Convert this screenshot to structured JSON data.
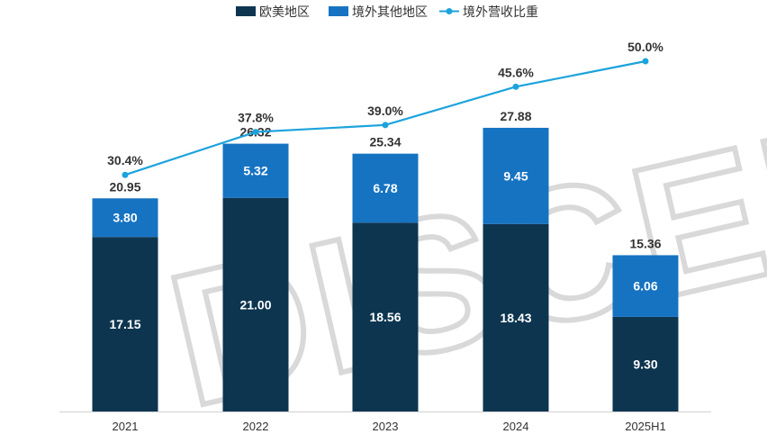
{
  "chart_data": {
    "type": "bar",
    "stacked": true,
    "categories": [
      "2021",
      "2022",
      "2023",
      "2024",
      "2025H1"
    ],
    "series": [
      {
        "name": "欧美地区",
        "color": "#0d3550",
        "values": [
          17.15,
          21.0,
          18.56,
          18.43,
          9.3
        ]
      },
      {
        "name": "境外其他地区",
        "color": "#1673c2",
        "values": [
          3.8,
          5.32,
          6.78,
          9.45,
          6.06
        ]
      }
    ],
    "totals": [
      20.95,
      26.32,
      25.34,
      27.88,
      15.36
    ],
    "line_series": {
      "name": "境外营收比重",
      "color": "#1ba3dd",
      "values": [
        30.4,
        37.8,
        39.0,
        45.6,
        50.0
      ],
      "labels": [
        "30.4%",
        "37.8%",
        "39.0%",
        "45.6%",
        "50.0%"
      ]
    },
    "legend_position": "top-center",
    "watermark": "DISCEN",
    "title": "",
    "xlabel": "",
    "ylabel": ""
  }
}
